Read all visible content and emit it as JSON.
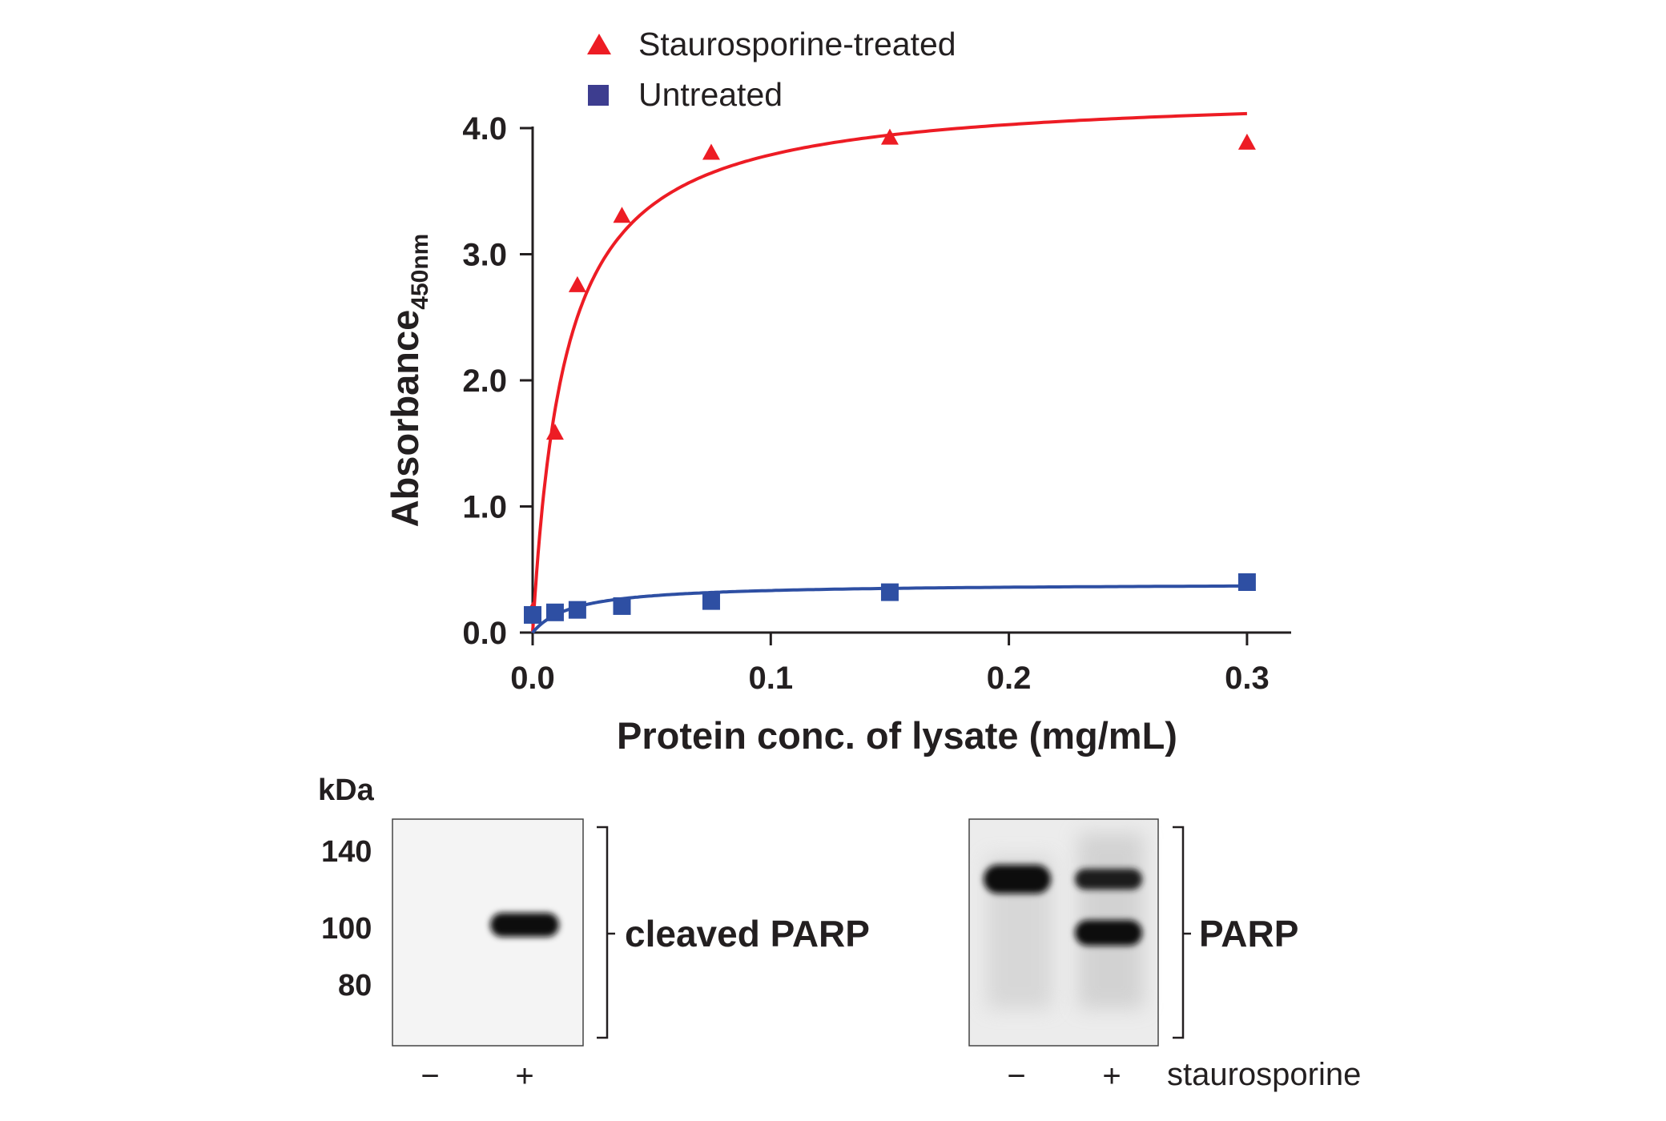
{
  "chart_data": {
    "type": "scatter",
    "xlabel": "Protein conc. of lysate (mg/mL)",
    "ylabel": "Absorbance",
    "ylabel_subscript": "450nm",
    "xlim": [
      0,
      0.32
    ],
    "ylim": [
      0,
      4.0
    ],
    "x_ticks": [
      "0.0",
      "0.1",
      "0.2",
      "0.3"
    ],
    "y_ticks": [
      "0.0",
      "1.0",
      "2.0",
      "3.0",
      "4.0"
    ],
    "x_tick_values": [
      0,
      0.1,
      0.2,
      0.3
    ],
    "y_tick_values": [
      0,
      1,
      2,
      3,
      4
    ],
    "grid": false,
    "legend_position": "top",
    "series": [
      {
        "name": "Staurosporine-treated",
        "marker": "triangle",
        "color": "#ed1c24",
        "x": [
          0,
          0.0094,
          0.0188,
          0.0375,
          0.075,
          0.15,
          0.3
        ],
        "y": [
          0.17,
          1.58,
          2.75,
          3.3,
          3.8,
          3.92,
          3.88
        ],
        "fit": {
          "vmax": 4.3,
          "k": 0.0135
        }
      },
      {
        "name": "Untreated",
        "marker": "square",
        "color": "#2e4fa3",
        "x": [
          0,
          0.0094,
          0.0188,
          0.0375,
          0.075,
          0.15,
          0.3
        ],
        "y": [
          0.14,
          0.16,
          0.18,
          0.21,
          0.25,
          0.32,
          0.4
        ],
        "fit": {
          "vmax": 0.39,
          "k": 0.017
        }
      }
    ]
  },
  "legend": {
    "marker_label": "Square",
    "legend_square_color": "#3d3d8f"
  },
  "blots": {
    "kda_label": "kDa",
    "markers": [
      "140",
      "100",
      "80"
    ],
    "left_label": "cleaved PARP",
    "right_label": "PARP",
    "left_lanes": [
      "−",
      "+"
    ],
    "right_lanes": [
      "−",
      "+"
    ],
    "treatment_label": "staurosporine"
  }
}
